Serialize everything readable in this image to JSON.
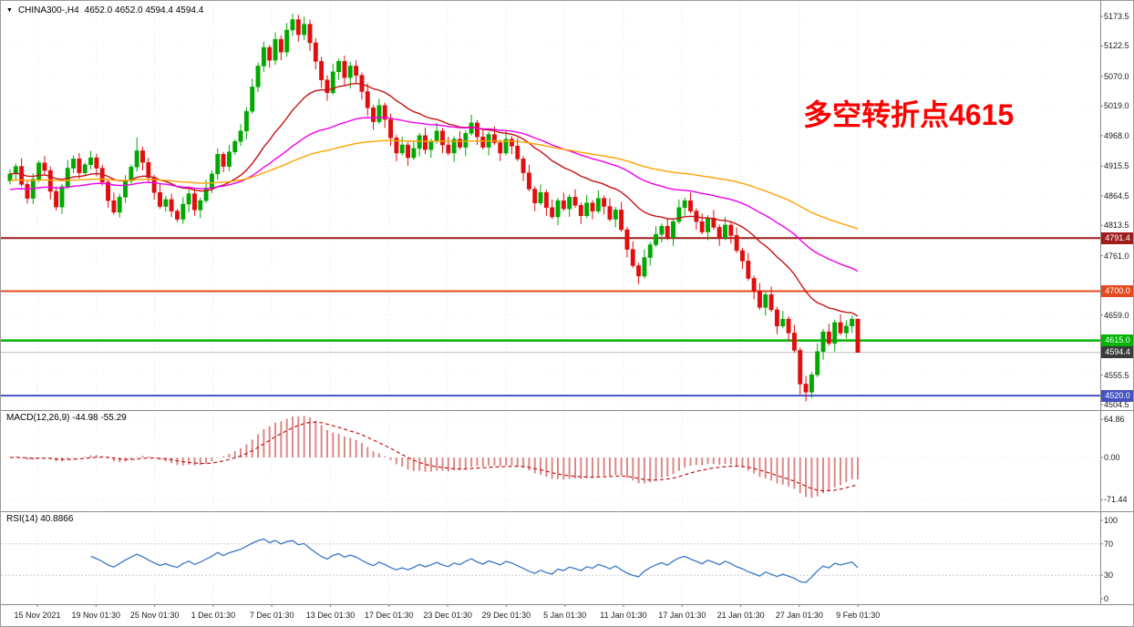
{
  "header": {
    "marker": "▼",
    "symbol": "CHINA300-,H4",
    "ohlc": "4652.0 4652.0 4594.4 4594.4"
  },
  "annotation": {
    "text": "多空转折点4615",
    "color": "#ff0000"
  },
  "chart_data": {
    "type": "candlestick",
    "symbol": "CHINA300-",
    "timeframe": "H4",
    "last_ohlc": {
      "open": 4652.0,
      "high": 4652.0,
      "low": 4594.4,
      "close": 4594.4
    },
    "ylim": [
      4504.5,
      5173.5
    ],
    "bull_color": "#00a800",
    "bear_color": "#e00e0e",
    "y_axis": {
      "labels": [
        {
          "text": "5173.5",
          "price": 5173.5
        },
        {
          "text": "5122.5",
          "price": 5122.5
        },
        {
          "text": "5070.0",
          "price": 5070.0
        },
        {
          "text": "5019.0",
          "price": 5019.0
        },
        {
          "text": "4968.0",
          "price": 4968.0
        },
        {
          "text": "4915.5",
          "price": 4915.5
        },
        {
          "text": "4864.5",
          "price": 4864.5
        },
        {
          "text": "4813.5",
          "price": 4813.5
        },
        {
          "text": "4761.0",
          "price": 4761.0
        },
        {
          "text": "4659.0",
          "price": 4659.0
        },
        {
          "text": "4555.5",
          "price": 4555.5
        },
        {
          "text": "4504.5",
          "price": 4504.5
        }
      ]
    },
    "x_axis": {
      "labels": [
        "15 Nov 2021",
        "19 Nov 01:30",
        "25 Nov 01:30",
        "1 Dec 01:30",
        "7 Dec 01:30",
        "13 Dec 01:30",
        "17 Dec 01:30",
        "23 Dec 01:30",
        "29 Dec 01:30",
        "5 Jan 01:30",
        "11 Jan 01:30",
        "17 Jan 01:30",
        "21 Jan 01:30",
        "27 Jan 01:30",
        "9 Feb 01:30"
      ]
    },
    "candles": [
      [
        4890,
        4910,
        4884,
        4902
      ],
      [
        4902,
        4920,
        4890,
        4915
      ],
      [
        4915,
        4929,
        4880,
        4884
      ],
      [
        4884,
        4890,
        4851,
        4860
      ],
      [
        4860,
        4903,
        4850,
        4893
      ],
      [
        4893,
        4925,
        4888,
        4921
      ],
      [
        4921,
        4933,
        4900,
        4908
      ],
      [
        4908,
        4915,
        4858,
        4872
      ],
      [
        4872,
        4880,
        4839,
        4845
      ],
      [
        4845,
        4885,
        4833,
        4880
      ],
      [
        4880,
        4926,
        4876,
        4912
      ],
      [
        4912,
        4934,
        4903,
        4928
      ],
      [
        4928,
        4938,
        4894,
        4904
      ],
      [
        4904,
        4922,
        4899,
        4918
      ],
      [
        4918,
        4942,
        4910,
        4930
      ],
      [
        4930,
        4937,
        4898,
        4912
      ],
      [
        4912,
        4918,
        4882,
        4888
      ],
      [
        4888,
        4893,
        4844,
        4856
      ],
      [
        4856,
        4870,
        4832,
        4836
      ],
      [
        4836,
        4868,
        4827,
        4862
      ],
      [
        4862,
        4900,
        4852,
        4890
      ],
      [
        4890,
        4918,
        4885,
        4914
      ],
      [
        4914,
        4965,
        4906,
        4942
      ],
      [
        4942,
        4949,
        4908,
        4922
      ],
      [
        4922,
        4930,
        4886,
        4896
      ],
      [
        4896,
        4901,
        4858,
        4870
      ],
      [
        4870,
        4884,
        4842,
        4846
      ],
      [
        4846,
        4864,
        4837,
        4858
      ],
      [
        4858,
        4868,
        4828,
        4838
      ],
      [
        4838,
        4842,
        4819,
        4824
      ],
      [
        4824,
        4862,
        4816,
        4850
      ],
      [
        4850,
        4875,
        4836,
        4868
      ],
      [
        4868,
        4878,
        4830,
        4840
      ],
      [
        4840,
        4861,
        4826,
        4856
      ],
      [
        4856,
        4892,
        4852,
        4878
      ],
      [
        4878,
        4908,
        4869,
        4902
      ],
      [
        4902,
        4946,
        4892,
        4936
      ],
      [
        4936,
        4940,
        4905,
        4915
      ],
      [
        4915,
        4952,
        4907,
        4940
      ],
      [
        4940,
        4962,
        4935,
        4958
      ],
      [
        4958,
        4988,
        4950,
        4976
      ],
      [
        4976,
        5017,
        4962,
        5010
      ],
      [
        5010,
        5066,
        5006,
        5052
      ],
      [
        5052,
        5094,
        5043,
        5088
      ],
      [
        5088,
        5130,
        5078,
        5120
      ],
      [
        5120,
        5124,
        5085,
        5098
      ],
      [
        5098,
        5146,
        5090,
        5134
      ],
      [
        5134,
        5141,
        5098,
        5112
      ],
      [
        5112,
        5162,
        5104,
        5150
      ],
      [
        5150,
        5178,
        5140,
        5168
      ],
      [
        5168,
        5176,
        5130,
        5142
      ],
      [
        5142,
        5173,
        5133,
        5160
      ],
      [
        5160,
        5168,
        5114,
        5128
      ],
      [
        5128,
        5136,
        5082,
        5096
      ],
      [
        5096,
        5104,
        5050,
        5064
      ],
      [
        5064,
        5072,
        5028,
        5042
      ],
      [
        5042,
        5092,
        5038,
        5078
      ],
      [
        5078,
        5101,
        5064,
        5096
      ],
      [
        5096,
        5106,
        5054,
        5068
      ],
      [
        5068,
        5095,
        5049,
        5088
      ],
      [
        5088,
        5098,
        5058,
        5072
      ],
      [
        5072,
        5077,
        5030,
        5044
      ],
      [
        5044,
        5058,
        5002,
        5016
      ],
      [
        5016,
        5021,
        4978,
        4992
      ],
      [
        4992,
        5032,
        4988,
        5020
      ],
      [
        5020,
        5025,
        4981,
        4996
      ],
      [
        4996,
        5006,
        4950,
        4964
      ],
      [
        4964,
        4969,
        4924,
        4938
      ],
      [
        4938,
        4966,
        4934,
        4952
      ],
      [
        4952,
        4957,
        4916,
        4930
      ],
      [
        4930,
        4960,
        4926,
        4946
      ],
      [
        4946,
        4973,
        4932,
        4968
      ],
      [
        4968,
        4982,
        4936,
        4944
      ],
      [
        4944,
        4963,
        4930,
        4958
      ],
      [
        4958,
        4990,
        4954,
        4976
      ],
      [
        4976,
        4981,
        4938,
        4952
      ],
      [
        4952,
        4966,
        4934,
        4938
      ],
      [
        4938,
        4967,
        4923,
        4962
      ],
      [
        4962,
        4976,
        4944,
        4948
      ],
      [
        4948,
        4977,
        4933,
        4972
      ],
      [
        4972,
        5004,
        4968,
        4990
      ],
      [
        4990,
        4995,
        4952,
        4966
      ],
      [
        4966,
        4980,
        4944,
        4948
      ],
      [
        4948,
        4975,
        4934,
        4970
      ],
      [
        4970,
        4984,
        4952,
        4956
      ],
      [
        4956,
        4961,
        4924,
        4938
      ],
      [
        4938,
        4976,
        4934,
        4962
      ],
      [
        4962,
        4967,
        4936,
        4950
      ],
      [
        4950,
        4964,
        4924,
        4928
      ],
      [
        4928,
        4933,
        4890,
        4904
      ],
      [
        4904,
        4918,
        4872,
        4876
      ],
      [
        4876,
        4881,
        4838,
        4852
      ],
      [
        4852,
        4884,
        4848,
        4870
      ],
      [
        4870,
        4875,
        4830,
        4844
      ],
      [
        4844,
        4858,
        4824,
        4828
      ],
      [
        4828,
        4861,
        4814,
        4856
      ],
      [
        4856,
        4870,
        4838,
        4842
      ],
      [
        4842,
        4867,
        4828,
        4862
      ],
      [
        4862,
        4876,
        4844,
        4848
      ],
      [
        4848,
        4853,
        4816,
        4830
      ],
      [
        4830,
        4866,
        4826,
        4852
      ],
      [
        4852,
        4857,
        4824,
        4838
      ],
      [
        4838,
        4874,
        4834,
        4860
      ],
      [
        4860,
        4865,
        4832,
        4846
      ],
      [
        4846,
        4860,
        4820,
        4824
      ],
      [
        4824,
        4845,
        4810,
        4840
      ],
      [
        4840,
        4854,
        4802,
        4806
      ],
      [
        4806,
        4811,
        4758,
        4772
      ],
      [
        4772,
        4786,
        4740,
        4744
      ],
      [
        4744,
        4749,
        4712,
        4726
      ],
      [
        4726,
        4772,
        4722,
        4758
      ],
      [
        4758,
        4785,
        4744,
        4780
      ],
      [
        4780,
        4812,
        4776,
        4798
      ],
      [
        4798,
        4817,
        4784,
        4812
      ],
      [
        4812,
        4826,
        4788,
        4792
      ],
      [
        4792,
        4825,
        4778,
        4820
      ],
      [
        4820,
        4858,
        4816,
        4844
      ],
      [
        4844,
        4861,
        4830,
        4856
      ],
      [
        4856,
        4870,
        4834,
        4838
      ],
      [
        4838,
        4843,
        4806,
        4820
      ],
      [
        4820,
        4834,
        4798,
        4802
      ],
      [
        4802,
        4831,
        4788,
        4826
      ],
      [
        4826,
        4840,
        4806,
        4810
      ],
      [
        4810,
        4815,
        4778,
        4792
      ],
      [
        4792,
        4828,
        4788,
        4814
      ],
      [
        4814,
        4819,
        4782,
        4796
      ],
      [
        4796,
        4810,
        4766,
        4770
      ],
      [
        4770,
        4775,
        4738,
        4752
      ],
      [
        4752,
        4766,
        4718,
        4722
      ],
      [
        4722,
        4727,
        4686,
        4700
      ],
      [
        4700,
        4714,
        4668,
        4672
      ],
      [
        4672,
        4699,
        4658,
        4694
      ],
      [
        4694,
        4708,
        4664,
        4668
      ],
      [
        4668,
        4673,
        4626,
        4640
      ],
      [
        4640,
        4666,
        4636,
        4652
      ],
      [
        4652,
        4657,
        4614,
        4628
      ],
      [
        4628,
        4642,
        4594,
        4598
      ],
      [
        4598,
        4603,
        4522,
        4540
      ],
      [
        4540,
        4554,
        4510,
        4526
      ],
      [
        4526,
        4561,
        4516,
        4556
      ],
      [
        4556,
        4610,
        4552,
        4596
      ],
      [
        4596,
        4635,
        4582,
        4630
      ],
      [
        4630,
        4644,
        4606,
        4610
      ],
      [
        4610,
        4651,
        4596,
        4646
      ],
      [
        4646,
        4660,
        4624,
        4628
      ],
      [
        4628,
        4650,
        4618,
        4640
      ],
      [
        4640,
        4658,
        4628,
        4652
      ],
      [
        4652,
        4652,
        4594.4,
        4594.4
      ]
    ],
    "overlays": [
      {
        "name": "ma-fast",
        "method": "ema",
        "period": 24,
        "seed": 4902,
        "color": "#c41414",
        "width": 1.4
      },
      {
        "name": "ma-mid",
        "method": "ema",
        "period": 55,
        "seed": 4874,
        "color": "#ee00ee",
        "width": 1.4
      },
      {
        "name": "ma-slow",
        "method": "ema",
        "period": 110,
        "seed": 4891,
        "color": "#ffa200",
        "width": 1.4
      }
    ],
    "h_lines": [
      {
        "text": "4791.4",
        "price": 4791.4,
        "color": "#9e1e1e",
        "badge_bg": "#9e1e1e",
        "width": 2
      },
      {
        "text": "4700.0",
        "price": 4700.0,
        "color": "#e44a1e",
        "badge_bg": "#e44a1e",
        "width": 2
      },
      {
        "text": "4615.0",
        "price": 4615.0,
        "color": "#00b400",
        "badge_bg": "#00b400",
        "width": 2.4
      },
      {
        "text": "4594.4",
        "price": 4594.4,
        "color": "#bdbdbd",
        "badge_bg": "#3c3c3c",
        "width": 1
      },
      {
        "text": "4520.0",
        "price": 4520.0,
        "color": "#4353c2",
        "badge_bg": "#4353c2",
        "width": 2
      }
    ],
    "indicators": {
      "macd": {
        "label": "MACD(12,26,9) -44.98 -55.29",
        "params": [
          12,
          26,
          9
        ],
        "last_main": -44.98,
        "last_signal": -55.29,
        "hist_color": "#dd8888",
        "signal_color": "#c41414",
        "y_labels": [
          {
            "text": "64.86",
            "value": 64.86
          },
          {
            "text": "0.00",
            "value": 0
          },
          {
            "text": "-71.44",
            "value": -71.44
          }
        ]
      },
      "rsi": {
        "label": "RSI(14) 40.8866",
        "period": 14,
        "last": 40.8866,
        "color": "#3878c8",
        "levels": [
          70,
          30
        ],
        "y_labels": [
          {
            "text": "100",
            "value": 100
          },
          {
            "text": "70",
            "value": 70
          },
          {
            "text": "30",
            "value": 30
          },
          {
            "text": "0",
            "value": 0
          }
        ]
      }
    }
  }
}
